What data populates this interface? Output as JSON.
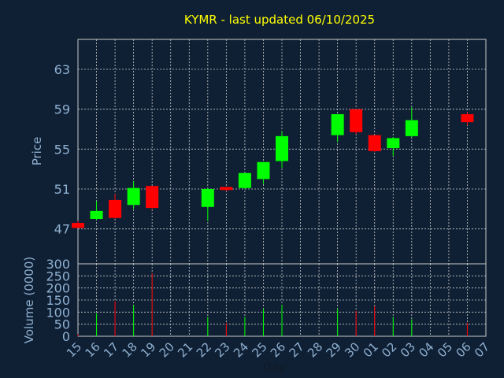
{
  "chart_data": {
    "type": "candlestick",
    "title": "KYMR - last updated 06/10/2025",
    "xlabel": "Day",
    "colors": {
      "background": "#0f2035",
      "title": "#ffff00",
      "axis_text": "#8fb0d0",
      "grid": "#c8c8c8",
      "up": "#00ff00",
      "down": "#ff0000"
    },
    "price_panel": {
      "ylabel": "Price",
      "ylim": [
        43.5,
        66
      ],
      "yticks": [
        47,
        51,
        55,
        59,
        63
      ],
      "grid": true
    },
    "volume_panel": {
      "ylabel": "Volume (0000)",
      "ylim": [
        0,
        300
      ],
      "yticks": [
        0,
        50,
        100,
        150,
        200,
        250,
        300
      ],
      "grid": true
    },
    "x_tick_labels": [
      "15",
      "16",
      "17",
      "18",
      "19",
      "20",
      "21",
      "22",
      "23",
      "24",
      "25",
      "26",
      "27",
      "28",
      "29",
      "30",
      "01",
      "02",
      "03",
      "04",
      "05",
      "06",
      "07"
    ],
    "candles": [
      {
        "day": "15",
        "open": 47.6,
        "high": 47.8,
        "low": 47.1,
        "close": 47.1,
        "volume": 8
      },
      {
        "day": "16",
        "open": 48.0,
        "high": 49.8,
        "low": 47.9,
        "close": 48.8,
        "volume": 95
      },
      {
        "day": "17",
        "open": 49.9,
        "high": 50.5,
        "low": 48.0,
        "close": 48.1,
        "volume": 145
      },
      {
        "day": "18",
        "open": 49.4,
        "high": 51.8,
        "low": 49.0,
        "close": 51.1,
        "volume": 130
      },
      {
        "day": "19",
        "open": 51.3,
        "high": 51.3,
        "low": 49.0,
        "close": 49.1,
        "volume": 260
      },
      {
        "day": "22",
        "open": 49.2,
        "high": 51.1,
        "low": 47.8,
        "close": 51.0,
        "volume": 80
      },
      {
        "day": "23",
        "open": 51.2,
        "high": 51.2,
        "low": 50.8,
        "close": 50.9,
        "volume": 55
      },
      {
        "day": "24",
        "open": 51.1,
        "high": 52.6,
        "low": 51.0,
        "close": 52.6,
        "volume": 80
      },
      {
        "day": "25",
        "open": 52.0,
        "high": 53.7,
        "low": 51.5,
        "close": 53.7,
        "volume": 115
      },
      {
        "day": "26",
        "open": 53.8,
        "high": 56.8,
        "low": 53.1,
        "close": 56.3,
        "volume": 130
      },
      {
        "day": "29",
        "open": 56.4,
        "high": 58.5,
        "low": 55.7,
        "close": 58.5,
        "volume": 115
      },
      {
        "day": "30",
        "open": 59.0,
        "high": 59.0,
        "low": 56.5,
        "close": 56.7,
        "volume": 105
      },
      {
        "day": "01",
        "open": 56.4,
        "high": 56.4,
        "low": 54.7,
        "close": 54.8,
        "volume": 125
      },
      {
        "day": "02",
        "open": 55.1,
        "high": 56.2,
        "low": 54.3,
        "close": 56.1,
        "volume": 80
      },
      {
        "day": "03",
        "open": 56.3,
        "high": 59.2,
        "low": 56.2,
        "close": 57.9,
        "volume": 70
      },
      {
        "day": "06",
        "open": 58.5,
        "high": 58.7,
        "low": 57.4,
        "close": 57.7,
        "volume": 55
      }
    ]
  }
}
